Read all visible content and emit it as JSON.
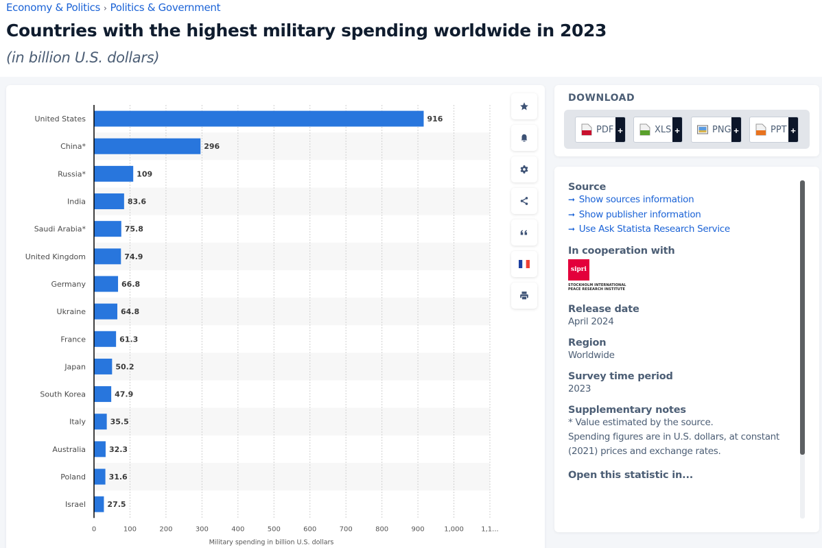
{
  "breadcrumb": [
    "Economy & Politics",
    "Politics & Government"
  ],
  "header": {
    "title": "Countries with the highest military spending worldwide in 2023",
    "subtitle": "(in billion U.S. dollars)"
  },
  "toolbar": [
    {
      "name": "bookmark",
      "icon": "star-icon"
    },
    {
      "name": "notification",
      "icon": "bell-icon"
    },
    {
      "name": "settings",
      "icon": "gear-icon"
    },
    {
      "name": "share",
      "icon": "share-icon"
    },
    {
      "name": "cite",
      "icon": "quote-icon"
    },
    {
      "name": "language",
      "icon": "french-flag-icon"
    },
    {
      "name": "print",
      "icon": "printer-icon"
    }
  ],
  "download": {
    "title": "DOWNLOAD",
    "buttons": [
      {
        "label": "PDF",
        "color": "#c8102e"
      },
      {
        "label": "XLS",
        "color": "#5aa02c"
      },
      {
        "label": "PNG",
        "color": "#3a7bd5"
      },
      {
        "label": "PPT",
        "color": "#e8731f"
      }
    ],
    "plus": "+"
  },
  "info": {
    "source_title": "Source",
    "links": [
      "Show sources information",
      "Show publisher information",
      "Use Ask Statista Research Service"
    ],
    "cooperation_title": "In cooperation with",
    "partner_logo_text": "sipri",
    "partner_name_line1": "STOCKHOLM INTERNATIONAL",
    "partner_name_line2": "PEACE RESEARCH INSTITUTE",
    "release_title": "Release date",
    "release_value": "April 2024",
    "region_title": "Region",
    "region_value": "Worldwide",
    "period_title": "Survey time period",
    "period_value": "2023",
    "notes_title": "Supplementary notes",
    "notes_line1": "* Value estimated by the source.",
    "notes_line2": "Spending figures are in U.S. dollars, at constant (2021) prices and exchange rates.",
    "open_title": "Open this statistic in..."
  },
  "chart_data": {
    "type": "bar",
    "orientation": "horizontal",
    "title": "Countries with the highest military spending worldwide in 2023",
    "xlabel": "Military spending in billion U.S. dollars",
    "ylabel": "",
    "categories": [
      "United States",
      "China*",
      "Russia*",
      "India",
      "Saudi Arabia*",
      "United Kingdom",
      "Germany",
      "Ukraine",
      "France",
      "Japan",
      "South Korea",
      "Italy",
      "Australia",
      "Poland",
      "Israel"
    ],
    "values": [
      916,
      296,
      109,
      83.6,
      75.8,
      74.9,
      66.8,
      64.8,
      61.3,
      50.2,
      47.9,
      35.5,
      32.3,
      31.6,
      27.5
    ],
    "value_labels": [
      "916",
      "296",
      "109",
      "83.6",
      "75.8",
      "74.9",
      "66.8",
      "64.8",
      "61.3",
      "50.2",
      "47.9",
      "35.5",
      "32.3",
      "31.6",
      "27.5"
    ],
    "xlim": [
      0,
      1100
    ],
    "xticks": [
      0,
      100,
      200,
      300,
      400,
      500,
      600,
      700,
      800,
      900,
      1000,
      1100
    ],
    "xtick_labels": [
      "0",
      "100",
      "200",
      "300",
      "400",
      "500",
      "600",
      "700",
      "800",
      "900",
      "1,000",
      "1,1..."
    ],
    "grid": true,
    "bar_color": "#2876dd",
    "legend": "none"
  }
}
